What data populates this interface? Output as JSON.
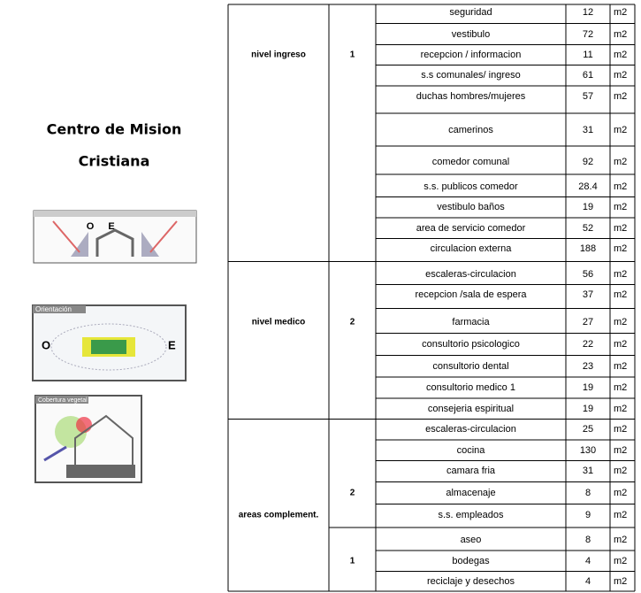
{
  "title": [
    "Centro de Mision",
    "Cristiana"
  ],
  "diagrams": [
    {
      "labels": [
        "O",
        "E"
      ]
    },
    {
      "caption": "Orientación",
      "labels": [
        "O",
        "E"
      ]
    },
    {
      "caption": "Cobertura vegetal"
    }
  ],
  "table": {
    "groups": [
      {
        "level": "nivel ingreso",
        "subgroups": [
          {
            "number": "1",
            "rows": [
              {
                "name": "seguridad",
                "area": 12,
                "unit": "m2"
              },
              {
                "name": "vestibulo",
                "area": 72,
                "unit": "m2"
              },
              {
                "name": "recepcion / informacion",
                "area": 11,
                "unit": "m2"
              },
              {
                "name": "s.s comunales/ ingreso",
                "area": 61,
                "unit": "m2"
              },
              {
                "name": "duchas hombres/mujeres",
                "area": 57,
                "unit": "m2"
              },
              {
                "name": "camerinos",
                "area": 31,
                "unit": "m2"
              },
              {
                "name": "comedor comunal",
                "area": 92,
                "unit": "m2"
              },
              {
                "name": "s.s. publicos comedor",
                "area": 28.4,
                "unit": "m2"
              },
              {
                "name": "vestibulo baños",
                "area": 19,
                "unit": "m2"
              },
              {
                "name": "area de servicio comedor",
                "area": 52,
                "unit": "m2"
              },
              {
                "name": "circulacion externa",
                "area": 188,
                "unit": "m2"
              }
            ]
          }
        ]
      },
      {
        "level": "nivel medico",
        "subgroups": [
          {
            "number": "2",
            "rows": [
              {
                "name": "escaleras-circulacion",
                "area": 56,
                "unit": "m2"
              },
              {
                "name": "recepcion /sala de espera",
                "area": 37,
                "unit": "m2"
              },
              {
                "name": "farmacia",
                "area": 27,
                "unit": "m2"
              },
              {
                "name": "consultorio psicologico",
                "area": 22,
                "unit": "m2"
              },
              {
                "name": "consultorio dental",
                "area": 23,
                "unit": "m2"
              },
              {
                "name": "consultorio medico 1",
                "area": 19,
                "unit": "m2"
              },
              {
                "name": "consejeria espiritual",
                "area": 19,
                "unit": "m2"
              }
            ]
          }
        ]
      },
      {
        "level": "areas complement.",
        "subgroups": [
          {
            "number": "2",
            "rows": [
              {
                "name": "escaleras-circulacion",
                "area": 25,
                "unit": "m2"
              },
              {
                "name": "cocina",
                "area": 130,
                "unit": "m2"
              },
              {
                "name": "camara fria",
                "area": 31,
                "unit": "m2"
              },
              {
                "name": "almacenaje",
                "area": 8,
                "unit": "m2"
              },
              {
                "name": "s.s. empleados",
                "area": 9,
                "unit": "m2"
              }
            ]
          },
          {
            "number": "1",
            "rows": [
              {
                "name": "aseo",
                "area": 8,
                "unit": "m2"
              },
              {
                "name": "bodegas",
                "area": 4,
                "unit": "m2"
              },
              {
                "name": "reciclaje y desechos",
                "area": 4,
                "unit": "m2"
              }
            ]
          }
        ]
      }
    ]
  }
}
